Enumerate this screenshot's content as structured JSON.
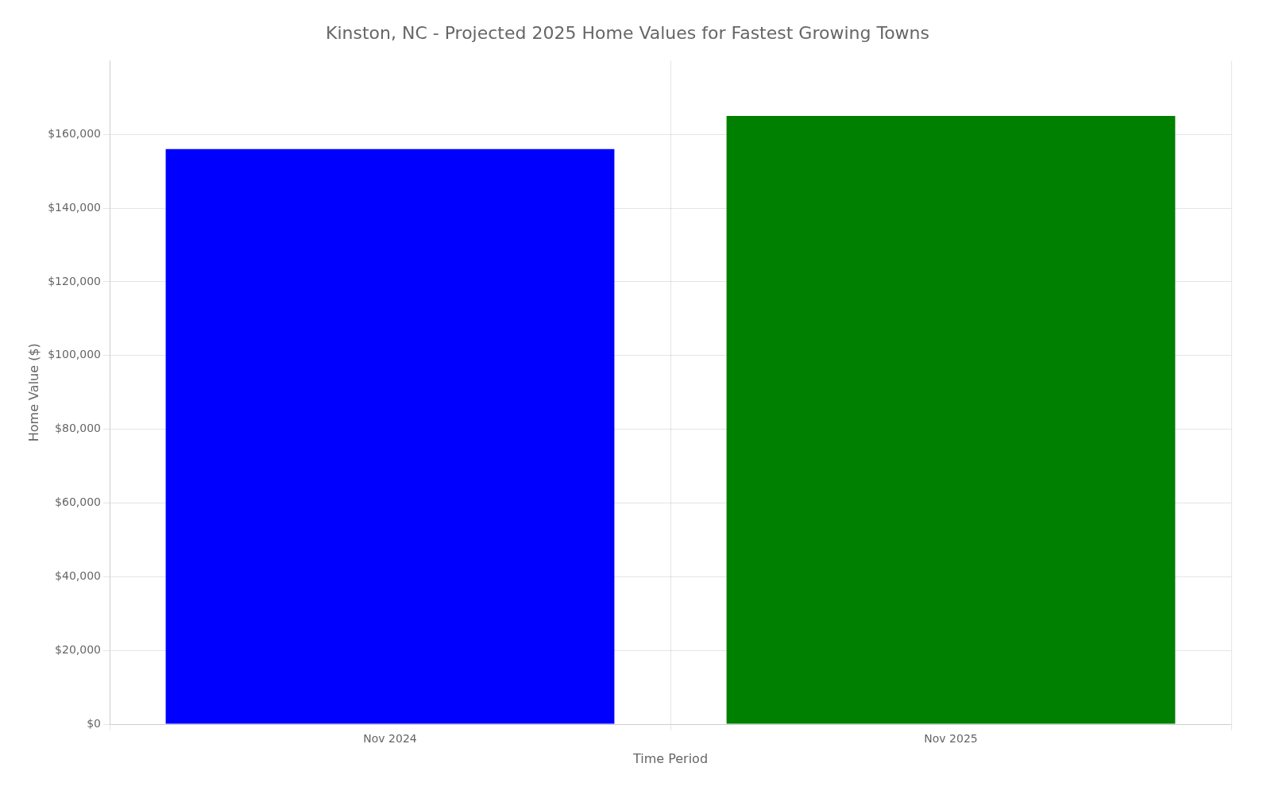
{
  "chart_data": {
    "type": "bar",
    "title": "Kinston, NC - Projected 2025 Home Values for Fastest Growing Towns",
    "xlabel": "Time Period",
    "ylabel": "Home Value ($)",
    "categories": [
      "Nov 2024",
      "Nov 2025"
    ],
    "values": [
      156000,
      165000
    ],
    "colors": [
      "#0000ff",
      "#008000"
    ],
    "ylim": [
      0,
      180000
    ],
    "yticks": [
      {
        "value": 0,
        "label": "$0"
      },
      {
        "value": 20000,
        "label": "$20,000"
      },
      {
        "value": 40000,
        "label": "$40,000"
      },
      {
        "value": 60000,
        "label": "$60,000"
      },
      {
        "value": 80000,
        "label": "$80,000"
      },
      {
        "value": 100000,
        "label": "$100,000"
      },
      {
        "value": 120000,
        "label": "$120,000"
      },
      {
        "value": 140000,
        "label": "$140,000"
      },
      {
        "value": 160000,
        "label": "$160,000"
      }
    ],
    "grid": true
  }
}
